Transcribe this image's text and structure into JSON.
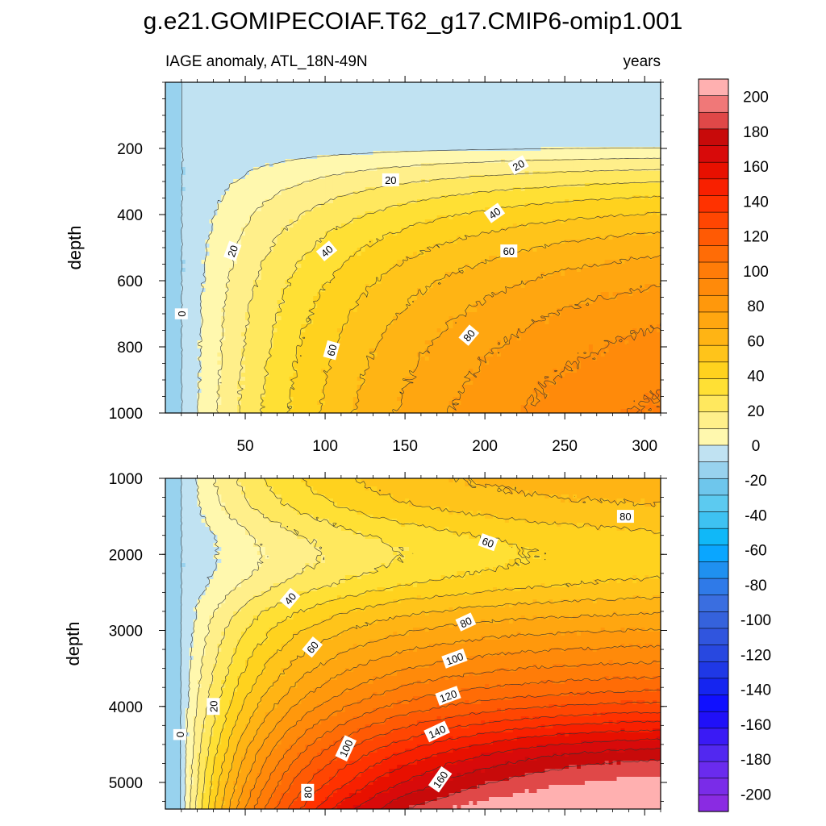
{
  "chart_data": [
    {
      "type": "heatmap",
      "panel": "upper",
      "title": "g.e21.GOMIPECOIAF.T62_g17.CMIP6-omip1.001",
      "left_string": "IAGE anomaly, ATL_18N-49N",
      "right_string": "years",
      "xlabel": "",
      "ylabel": "depth",
      "xlim": [
        0,
        310
      ],
      "ylim": [
        1000,
        0
      ],
      "x_ticks": [
        50,
        100,
        150,
        200,
        250,
        300
      ],
      "x_tick_labels": [
        "50",
        "100",
        "150",
        "200",
        "250",
        "300"
      ],
      "y_ticks": [
        200,
        400,
        600,
        800,
        1000
      ],
      "y_tick_labels": [
        "200",
        "400",
        "600",
        "800",
        "1000"
      ],
      "contour_labels": [
        {
          "text": "0",
          "x": 10,
          "y": 700,
          "angle": -90
        },
        {
          "text": "20",
          "x": 42,
          "y": 510,
          "angle": -70
        },
        {
          "text": "20",
          "x": 141,
          "y": 295,
          "angle": 0
        },
        {
          "text": "20",
          "x": 221,
          "y": 250,
          "angle": -30
        },
        {
          "text": "40",
          "x": 101,
          "y": 510,
          "angle": -40
        },
        {
          "text": "40",
          "x": 206,
          "y": 395,
          "angle": -35
        },
        {
          "text": "60",
          "x": 104,
          "y": 810,
          "angle": -75
        },
        {
          "text": "60",
          "x": 215,
          "y": 510,
          "angle": 0
        },
        {
          "text": "80",
          "x": 190,
          "y": 765,
          "angle": -50
        }
      ]
    },
    {
      "type": "heatmap",
      "panel": "lower",
      "xlabel": "",
      "ylabel": "depth",
      "xlim": [
        0,
        310
      ],
      "ylim": [
        5350,
        1000
      ],
      "y_ticks": [
        1000,
        2000,
        3000,
        4000,
        5000
      ],
      "y_tick_labels": [
        "1000",
        "2000",
        "3000",
        "4000",
        "5000"
      ],
      "contour_labels": [
        {
          "text": "0",
          "x": 9,
          "y": 4370,
          "angle": -90
        },
        {
          "text": "20",
          "x": 30,
          "y": 4000,
          "angle": -90
        },
        {
          "text": "40",
          "x": 78,
          "y": 2580,
          "angle": -50
        },
        {
          "text": "60",
          "x": 92,
          "y": 3220,
          "angle": -50
        },
        {
          "text": "60",
          "x": 202,
          "y": 1840,
          "angle": 20
        },
        {
          "text": "80",
          "x": 89,
          "y": 5130,
          "angle": -90
        },
        {
          "text": "80",
          "x": 188,
          "y": 2890,
          "angle": -25
        },
        {
          "text": "80",
          "x": 288,
          "y": 1500,
          "angle": 0
        },
        {
          "text": "100",
          "x": 113,
          "y": 4550,
          "angle": -65
        },
        {
          "text": "100",
          "x": 181,
          "y": 3370,
          "angle": -20
        },
        {
          "text": "120",
          "x": 177,
          "y": 3860,
          "angle": -20
        },
        {
          "text": "140",
          "x": 170,
          "y": 4330,
          "angle": -25
        },
        {
          "text": "160",
          "x": 172,
          "y": 4960,
          "angle": -55
        }
      ]
    }
  ],
  "colorbar": {
    "levels": [
      -210,
      -200,
      -190,
      -180,
      -170,
      -160,
      -150,
      -140,
      -130,
      -120,
      -110,
      -100,
      -90,
      -80,
      -70,
      -60,
      -50,
      -40,
      -30,
      -20,
      -10,
      0,
      10,
      20,
      30,
      40,
      50,
      60,
      70,
      80,
      90,
      100,
      110,
      120,
      130,
      140,
      150,
      160,
      170,
      180,
      190,
      200,
      210
    ],
    "colors": [
      "#8a2be2",
      "#7a2ce8",
      "#6a2bee",
      "#5228f0",
      "#3a1af5",
      "#2010f8",
      "#1010ff",
      "#1525f0",
      "#1f38e6",
      "#2848e0",
      "#3055de",
      "#3562dc",
      "#3a6ee0",
      "#2f7ae8",
      "#1f90f0",
      "#0aa6ff",
      "#10b8f8",
      "#3ec2f2",
      "#5ccaf0",
      "#6ec6ec",
      "#98d2ee",
      "#c0e2f2",
      "#fff8ae",
      "#ffef8a",
      "#ffe85e",
      "#ffe034",
      "#ffd21e",
      "#ffc41a",
      "#ffb414",
      "#ffa610",
      "#ff980c",
      "#ff8a0a",
      "#ff7c08",
      "#ff6c06",
      "#ff5a04",
      "#ff4602",
      "#ff3200",
      "#f82000",
      "#e81000",
      "#d80a0a",
      "#c80a0a",
      "#e04848",
      "#f07878",
      "#ffb0b0"
    ],
    "tick_values": [
      200,
      180,
      160,
      140,
      120,
      100,
      80,
      60,
      40,
      20,
      0,
      -20,
      -40,
      -60,
      -80,
      -100,
      -120,
      -140,
      -160,
      -180,
      -200
    ],
    "tick_labels": [
      "200",
      "180",
      "160",
      "140",
      "120",
      "100",
      "80",
      "60",
      "40",
      "20",
      "0",
      "-20",
      "-40",
      "-60",
      "-80",
      "-100",
      "-120",
      "-140",
      "-160",
      "-180",
      "-200"
    ]
  }
}
